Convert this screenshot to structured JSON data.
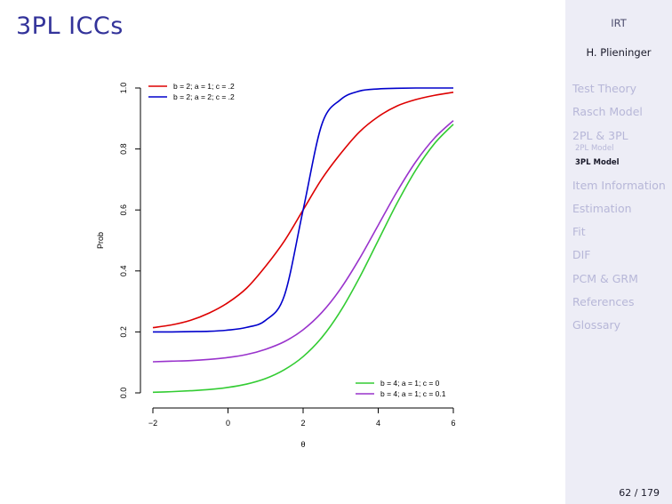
{
  "slide": {
    "title": "3PL ICCs",
    "page_number": "62 / 179"
  },
  "sidebar": {
    "short_title": "IRT",
    "author": "H. Plieninger",
    "nav": [
      {
        "label": "Test Theory"
      },
      {
        "label": "Rasch Model"
      },
      {
        "label": "2PL & 3PL",
        "subitems": [
          {
            "label": "2PL Model",
            "active": false
          },
          {
            "label": "3PL Model",
            "active": true
          }
        ]
      },
      {
        "label": "Item Information"
      },
      {
        "label": "Estimation"
      },
      {
        "label": "Fit"
      },
      {
        "label": "DIF"
      },
      {
        "label": "PCM & GRM"
      },
      {
        "label": "References"
      },
      {
        "label": "Glossary"
      }
    ]
  },
  "chart_data": {
    "type": "line",
    "title": "",
    "xlabel": "θ",
    "ylabel": "Prob",
    "xlim": [
      -2,
      6
    ],
    "ylim": [
      0,
      1
    ],
    "xticks": [
      -2,
      0,
      2,
      4,
      6
    ],
    "yticks": [
      0.0,
      0.2,
      0.4,
      0.6,
      0.8,
      1.0
    ],
    "xtick_labels": [
      "−2",
      "0",
      "2",
      "4",
      "6"
    ],
    "ytick_labels": [
      "0.0",
      "0.2",
      "0.4",
      "0.6",
      "0.8",
      "1.0"
    ],
    "grid": false,
    "x": [
      -2,
      -1.5,
      -1,
      -0.5,
      0,
      0.5,
      1,
      1.5,
      2,
      2.5,
      3,
      3.5,
      4,
      4.5,
      5,
      5.5,
      6
    ],
    "series": [
      {
        "name": "b = 2; a = 1; c = .2",
        "color": "#dd0000",
        "legend": "top-left",
        "values": [
          0.214,
          0.223,
          0.238,
          0.262,
          0.296,
          0.344,
          0.415,
          0.498,
          0.6,
          0.702,
          0.785,
          0.856,
          0.906,
          0.941,
          0.962,
          0.976,
          0.986
        ]
      },
      {
        "name": "b = 2; a = 2; c = .2",
        "color": "#0000cc",
        "legend": "top-left",
        "values": [
          0.2,
          0.2,
          0.201,
          0.202,
          0.206,
          0.215,
          0.238,
          0.319,
          0.6,
          0.881,
          0.962,
          0.99,
          0.997,
          0.999,
          1.0,
          1.0,
          1.0
        ]
      },
      {
        "name": "b = 4; a = 1; c = 0",
        "color": "#33cc33",
        "legend": "bottom-right",
        "values": [
          0.002,
          0.004,
          0.007,
          0.011,
          0.018,
          0.029,
          0.047,
          0.076,
          0.119,
          0.182,
          0.269,
          0.378,
          0.5,
          0.622,
          0.731,
          0.818,
          0.881
        ]
      },
      {
        "name": "b = 4; a = 1; c = 0.1",
        "color": "#9933cc",
        "legend": "bottom-right",
        "values": [
          0.102,
          0.104,
          0.106,
          0.11,
          0.116,
          0.126,
          0.143,
          0.168,
          0.207,
          0.264,
          0.342,
          0.44,
          0.55,
          0.66,
          0.758,
          0.836,
          0.893
        ]
      }
    ]
  }
}
